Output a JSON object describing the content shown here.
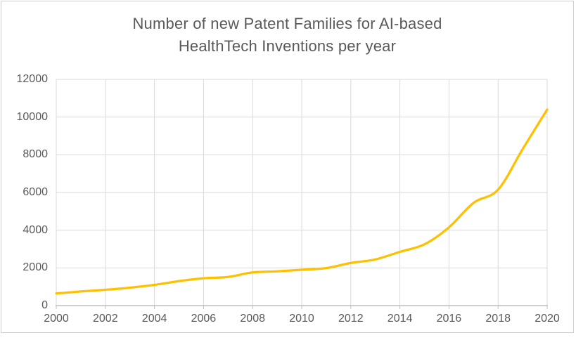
{
  "window": {
    "background_color": "#ffffff",
    "frame_border_color": "#cfcdcd"
  },
  "chart_data": {
    "type": "line",
    "title": "Number of new Patent Families for AI-based HealthTech Inventions per year",
    "title_line1": "Number of new Patent Families for AI-based",
    "title_line2": "HealthTech Inventions per year",
    "xlabel": "",
    "ylabel": "",
    "x": [
      2000,
      2001,
      2002,
      2003,
      2004,
      2005,
      2006,
      2007,
      2008,
      2009,
      2010,
      2011,
      2012,
      2013,
      2014,
      2015,
      2016,
      2017,
      2018,
      2019,
      2020
    ],
    "values": [
      640,
      750,
      840,
      950,
      1100,
      1300,
      1450,
      1520,
      1760,
      1820,
      1900,
      1990,
      2260,
      2450,
      2850,
      3250,
      4150,
      5450,
      6150,
      8300,
      10400
    ],
    "xlim": [
      2000,
      2020
    ],
    "ylim": [
      0,
      12000
    ],
    "x_tick_labels": [
      "2000",
      "2002",
      "2004",
      "2006",
      "2008",
      "2010",
      "2012",
      "2014",
      "2016",
      "2018",
      "2020"
    ],
    "y_tick_labels": [
      "0",
      "2000",
      "4000",
      "6000",
      "8000",
      "10000",
      "12000"
    ],
    "grid": true,
    "legend": false,
    "smooth_line": true,
    "line_color": "#FFC000"
  },
  "style": {
    "title_color": "#595959",
    "tick_label_color": "#595959",
    "gridline_color": "#D9D9D9",
    "plot_border_color": "#D9D9D9",
    "axis_line_color": "#BFBFBF"
  }
}
